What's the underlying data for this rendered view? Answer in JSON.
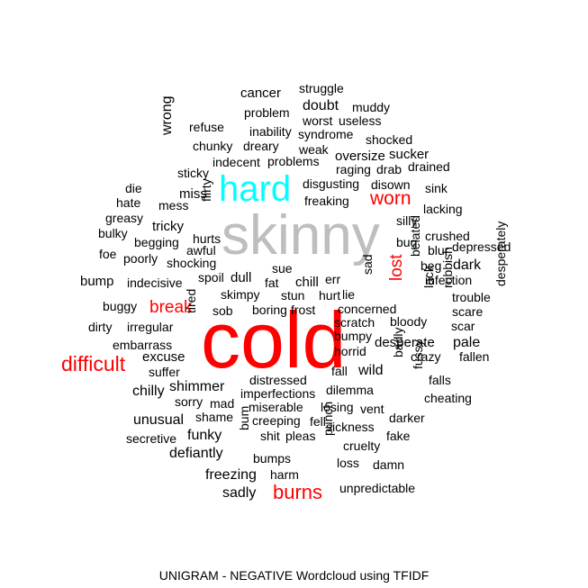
{
  "chart_data": {
    "type": "wordcloud",
    "title": "UNIGRAM - NEGATIVE Wordcloud using TFIDF",
    "colors": {
      "tier1": "#ff0000",
      "tier2": "#bebebe",
      "tier3": "#00ffff",
      "tier4": "#ff0000",
      "tier5": "#000000"
    },
    "words": [
      {
        "text": "cold",
        "tier": 1
      },
      {
        "text": "skinny",
        "tier": 2
      },
      {
        "text": "hard",
        "tier": 3
      },
      {
        "text": "difficult",
        "tier": 4
      },
      {
        "text": "burns",
        "tier": 4
      },
      {
        "text": "worn",
        "tier": 4
      },
      {
        "text": "break",
        "tier": 4
      },
      {
        "text": "lost",
        "tier": 4
      },
      {
        "text": "cancer",
        "tier": 5
      },
      {
        "text": "struggle",
        "tier": 5
      },
      {
        "text": "doubt",
        "tier": 5
      },
      {
        "text": "muddy",
        "tier": 5
      },
      {
        "text": "problem",
        "tier": 5
      },
      {
        "text": "worst",
        "tier": 5
      },
      {
        "text": "useless",
        "tier": 5
      },
      {
        "text": "refuse",
        "tier": 5
      },
      {
        "text": "inability",
        "tier": 5
      },
      {
        "text": "syndrome",
        "tier": 5
      },
      {
        "text": "shocked",
        "tier": 5
      },
      {
        "text": "wrong",
        "tier": 5
      },
      {
        "text": "chunky",
        "tier": 5
      },
      {
        "text": "dreary",
        "tier": 5
      },
      {
        "text": "weak",
        "tier": 5
      },
      {
        "text": "oversize",
        "tier": 5
      },
      {
        "text": "sucker",
        "tier": 5
      },
      {
        "text": "indecent",
        "tier": 5
      },
      {
        "text": "problems",
        "tier": 5
      },
      {
        "text": "raging",
        "tier": 5
      },
      {
        "text": "drab",
        "tier": 5
      },
      {
        "text": "drained",
        "tier": 5
      },
      {
        "text": "sticky",
        "tier": 5
      },
      {
        "text": "disgusting",
        "tier": 5
      },
      {
        "text": "disown",
        "tier": 5
      },
      {
        "text": "sink",
        "tier": 5
      },
      {
        "text": "die",
        "tier": 5
      },
      {
        "text": "miss",
        "tier": 5
      },
      {
        "text": "freaking",
        "tier": 5
      },
      {
        "text": "hate",
        "tier": 5
      },
      {
        "text": "mess",
        "tier": 5
      },
      {
        "text": "flirty",
        "tier": 5
      },
      {
        "text": "lacking",
        "tier": 5
      },
      {
        "text": "greasy",
        "tier": 5
      },
      {
        "text": "tricky",
        "tier": 5
      },
      {
        "text": "silly",
        "tier": 5
      },
      {
        "text": "bulky",
        "tier": 5
      },
      {
        "text": "hurts",
        "tier": 5
      },
      {
        "text": "crushed",
        "tier": 5
      },
      {
        "text": "begging",
        "tier": 5
      },
      {
        "text": "awful",
        "tier": 5
      },
      {
        "text": "bug",
        "tier": 5
      },
      {
        "text": "blur",
        "tier": 5
      },
      {
        "text": "depressed",
        "tier": 5
      },
      {
        "text": "foe",
        "tier": 5
      },
      {
        "text": "poorly",
        "tier": 5
      },
      {
        "text": "shocking",
        "tier": 5
      },
      {
        "text": "dark",
        "tier": 5
      },
      {
        "text": "sue",
        "tier": 5
      },
      {
        "text": "beg",
        "tier": 5
      },
      {
        "text": "spoil",
        "tier": 5
      },
      {
        "text": "dull",
        "tier": 5
      },
      {
        "text": "belated",
        "tier": 5
      },
      {
        "text": "rubbish",
        "tier": 5
      },
      {
        "text": "infection",
        "tier": 5
      },
      {
        "text": "bump",
        "tier": 5
      },
      {
        "text": "indecisive",
        "tier": 5
      },
      {
        "text": "fat",
        "tier": 5
      },
      {
        "text": "chill",
        "tier": 5
      },
      {
        "text": "err",
        "tier": 5
      },
      {
        "text": "sad",
        "tier": 5
      },
      {
        "text": "lack",
        "tier": 5
      },
      {
        "text": "trouble",
        "tier": 5
      },
      {
        "text": "skimpy",
        "tier": 5
      },
      {
        "text": "stun",
        "tier": 5
      },
      {
        "text": "hurt",
        "tier": 5
      },
      {
        "text": "lie",
        "tier": 5
      },
      {
        "text": "desperately",
        "tier": 5
      },
      {
        "text": "buggy",
        "tier": 5
      },
      {
        "text": "sob",
        "tier": 5
      },
      {
        "text": "boring",
        "tier": 5
      },
      {
        "text": "frost",
        "tier": 5
      },
      {
        "text": "concerned",
        "tier": 5
      },
      {
        "text": "scare",
        "tier": 5
      },
      {
        "text": "dirty",
        "tier": 5
      },
      {
        "text": "irregular",
        "tier": 5
      },
      {
        "text": "tired",
        "tier": 5
      },
      {
        "text": "scratch",
        "tier": 5
      },
      {
        "text": "bloody",
        "tier": 5
      },
      {
        "text": "scar",
        "tier": 5
      },
      {
        "text": "bumpy",
        "tier": 5
      },
      {
        "text": "desperate",
        "tier": 5
      },
      {
        "text": "pale",
        "tier": 5
      },
      {
        "text": "embarrass",
        "tier": 5
      },
      {
        "text": "horrid",
        "tier": 5
      },
      {
        "text": "crazy",
        "tier": 5
      },
      {
        "text": "fallen",
        "tier": 5
      },
      {
        "text": "excuse",
        "tier": 5
      },
      {
        "text": "suffer",
        "tier": 5
      },
      {
        "text": "fall",
        "tier": 5
      },
      {
        "text": "wild",
        "tier": 5
      },
      {
        "text": "distressed",
        "tier": 5
      },
      {
        "text": "badly",
        "tier": 5
      },
      {
        "text": "fussy",
        "tier": 5
      },
      {
        "text": "falls",
        "tier": 5
      },
      {
        "text": "shimmer",
        "tier": 5
      },
      {
        "text": "chilly",
        "tier": 5
      },
      {
        "text": "imperfections",
        "tier": 5
      },
      {
        "text": "dilemma",
        "tier": 5
      },
      {
        "text": "cheating",
        "tier": 5
      },
      {
        "text": "sorry",
        "tier": 5
      },
      {
        "text": "mad",
        "tier": 5
      },
      {
        "text": "miserable",
        "tier": 5
      },
      {
        "text": "losing",
        "tier": 5
      },
      {
        "text": "vent",
        "tier": 5
      },
      {
        "text": "unusual",
        "tier": 5
      },
      {
        "text": "shame",
        "tier": 5
      },
      {
        "text": "creeping",
        "tier": 5
      },
      {
        "text": "fell",
        "tier": 5
      },
      {
        "text": "darker",
        "tier": 5
      },
      {
        "text": "sickness",
        "tier": 5
      },
      {
        "text": "funky",
        "tier": 5
      },
      {
        "text": "secretive",
        "tier": 5
      },
      {
        "text": "shit",
        "tier": 5
      },
      {
        "text": "pleas",
        "tier": 5
      },
      {
        "text": "fake",
        "tier": 5
      },
      {
        "text": "bum",
        "tier": 5
      },
      {
        "text": "defiantly",
        "tier": 5
      },
      {
        "text": "cruelty",
        "tier": 5
      },
      {
        "text": "bumps",
        "tier": 5
      },
      {
        "text": "punch",
        "tier": 5
      },
      {
        "text": "loss",
        "tier": 5
      },
      {
        "text": "damn",
        "tier": 5
      },
      {
        "text": "freezing",
        "tier": 5
      },
      {
        "text": "harm",
        "tier": 5
      },
      {
        "text": "sadly",
        "tier": 5
      },
      {
        "text": "unpredictable",
        "tier": 5
      }
    ]
  }
}
